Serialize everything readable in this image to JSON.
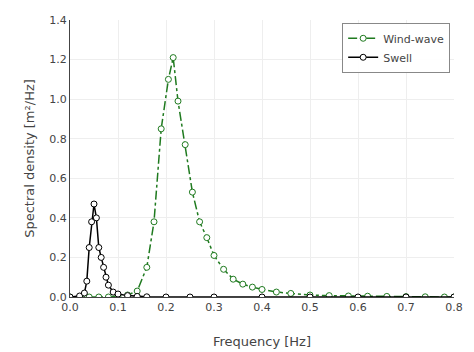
{
  "chart_data": {
    "type": "line",
    "xlabel": "Frequency [Hz]",
    "ylabel": "Spectral density [m²/Hz]",
    "series": [
      {
        "name": "Wind-wave",
        "color": "#1f7a1f",
        "marker": "circle",
        "line_style": "dashdot",
        "x": [
          0.0,
          0.02,
          0.04,
          0.06,
          0.08,
          0.1,
          0.12,
          0.14,
          0.16,
          0.175,
          0.19,
          0.205,
          0.215,
          0.225,
          0.24,
          0.255,
          0.27,
          0.285,
          0.3,
          0.32,
          0.34,
          0.36,
          0.38,
          0.4,
          0.43,
          0.46,
          0.5,
          0.54,
          0.58,
          0.62,
          0.66,
          0.7,
          0.74,
          0.78,
          0.8
        ],
        "values": [
          0.0,
          0.0,
          0.0,
          0.0,
          0.0,
          0.005,
          0.01,
          0.03,
          0.15,
          0.38,
          0.85,
          1.1,
          1.21,
          0.99,
          0.77,
          0.53,
          0.38,
          0.3,
          0.21,
          0.14,
          0.09,
          0.065,
          0.05,
          0.038,
          0.025,
          0.018,
          0.01,
          0.007,
          0.005,
          0.004,
          0.003,
          0.002,
          0.001,
          0.0,
          0.0
        ]
      },
      {
        "name": "Swell",
        "color": "#000000",
        "marker": "circle",
        "line_style": "solid",
        "x": [
          0.0,
          0.02,
          0.03,
          0.035,
          0.04,
          0.045,
          0.05,
          0.055,
          0.06,
          0.065,
          0.07,
          0.075,
          0.08,
          0.09,
          0.1,
          0.12,
          0.14,
          0.16,
          0.2,
          0.25,
          0.3,
          0.4,
          0.5,
          0.6,
          0.7,
          0.8
        ],
        "values": [
          0.0,
          0.005,
          0.02,
          0.08,
          0.25,
          0.38,
          0.47,
          0.4,
          0.25,
          0.2,
          0.15,
          0.1,
          0.06,
          0.025,
          0.015,
          0.007,
          0.003,
          0.001,
          0.0,
          0.0,
          0.0,
          0.0,
          0.0,
          0.0,
          0.0,
          0.0
        ]
      }
    ],
    "xlim": [
      0.0,
      0.8
    ],
    "ylim": [
      0.0,
      1.4
    ],
    "xticks": [
      {
        "value": 0.0,
        "label": "0.0"
      },
      0.1,
      0.2,
      0.3,
      0.4,
      0.5,
      0.6,
      0.7,
      0.8
    ],
    "yticks": [
      {
        "value": 0.0,
        "label": "0.0"
      },
      0.2,
      0.4,
      0.6,
      0.8,
      {
        "value": 1.0,
        "label": "1.0"
      },
      1.2,
      1.4
    ],
    "grid": true,
    "legend": "upper right"
  }
}
